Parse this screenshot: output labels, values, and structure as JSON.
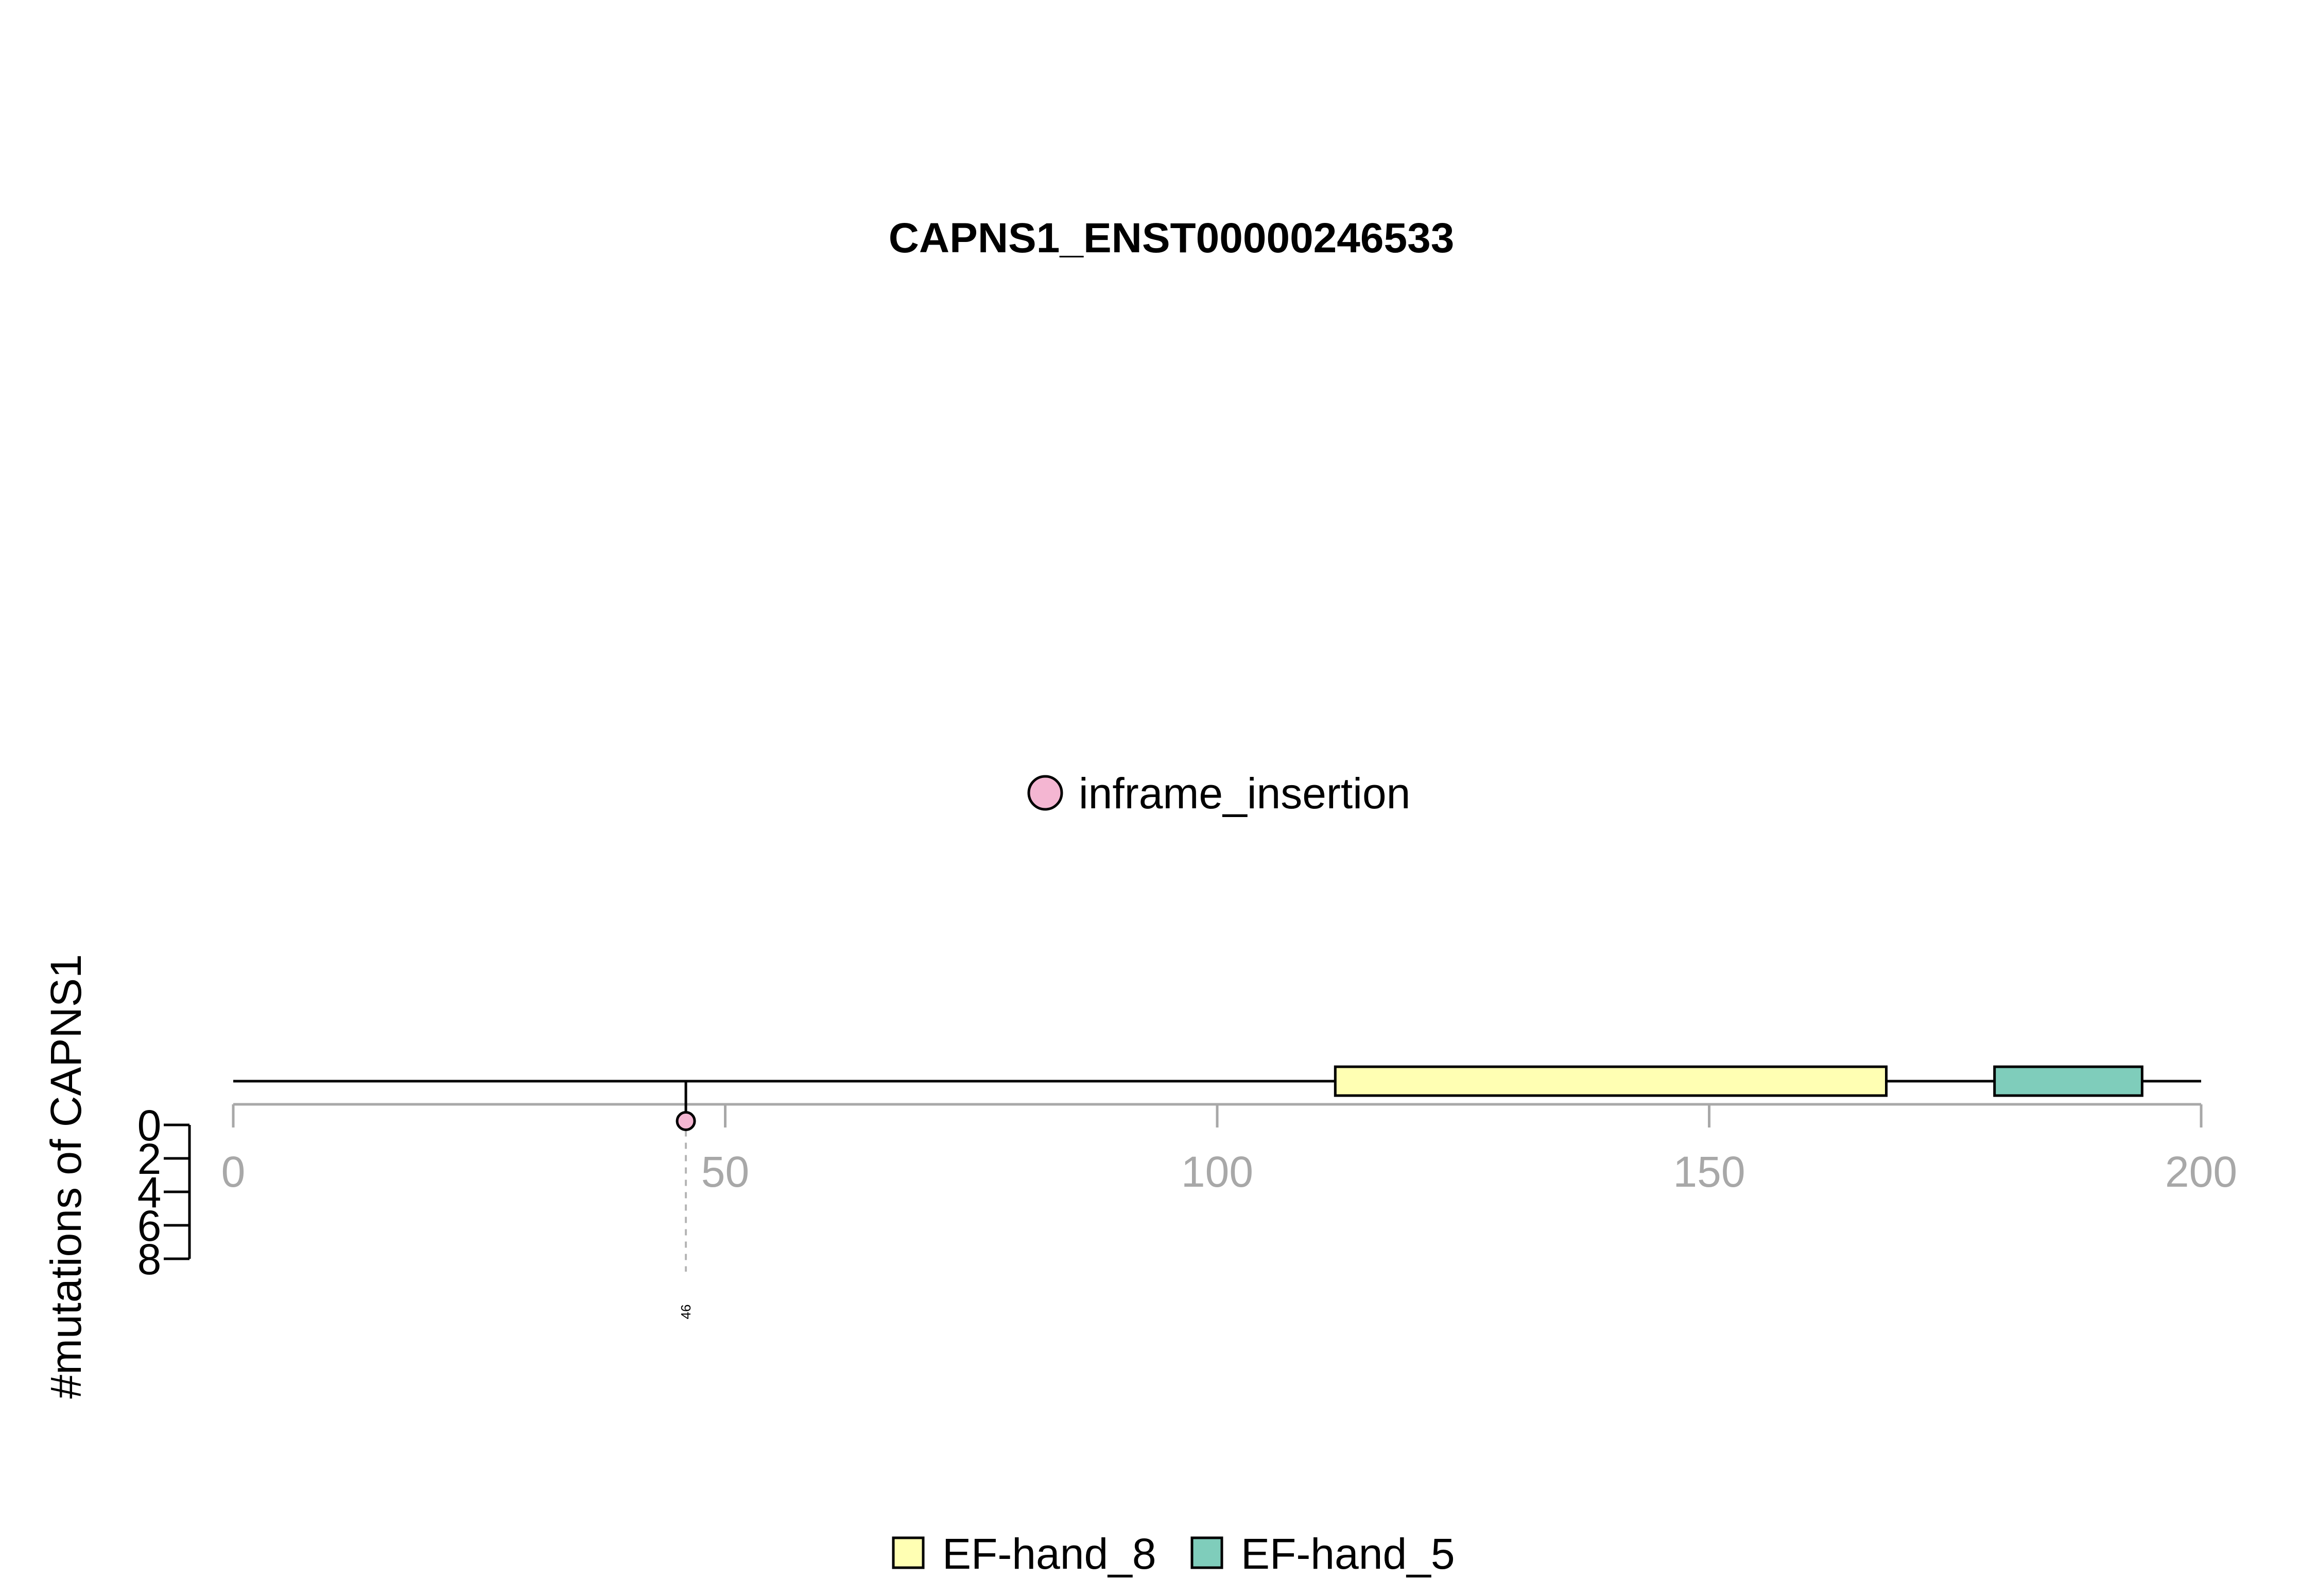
{
  "chart_data": {
    "type": "lollipop",
    "title": "CAPNS1_ENST00000246533",
    "xlim": [
      0,
      200
    ],
    "x_ticks": [
      0,
      50,
      100,
      150,
      200
    ],
    "x_tick_labels": [
      "0",
      "50",
      "100",
      "150",
      "200"
    ],
    "ylabel": "#mutations of CAPNS1",
    "ylim": [
      0,
      8
    ],
    "y_ticks": [
      0,
      2,
      4,
      6,
      8
    ],
    "y_tick_labels": [
      "0",
      "2",
      "4",
      "6",
      "8"
    ],
    "protein_length": 200,
    "domains": [
      {
        "name": "EF-hand_8",
        "start": 112,
        "end": 168,
        "color": "#FFFFB3"
      },
      {
        "name": "EF-hand_5",
        "start": 179,
        "end": 194,
        "color": "#7FCDBB"
      }
    ],
    "mutations": [
      {
        "position": 46,
        "label": "46",
        "count": 1,
        "type": "inframe_insertion",
        "color": "#F4B6D2"
      }
    ],
    "mutation_legend": [
      {
        "label": "inframe_insertion",
        "color": "#F4B6D2"
      }
    ],
    "domain_legend": [
      {
        "label": "EF-hand_8",
        "color": "#FFFFB3"
      },
      {
        "label": "EF-hand_5",
        "color": "#7FCDBB"
      }
    ]
  }
}
